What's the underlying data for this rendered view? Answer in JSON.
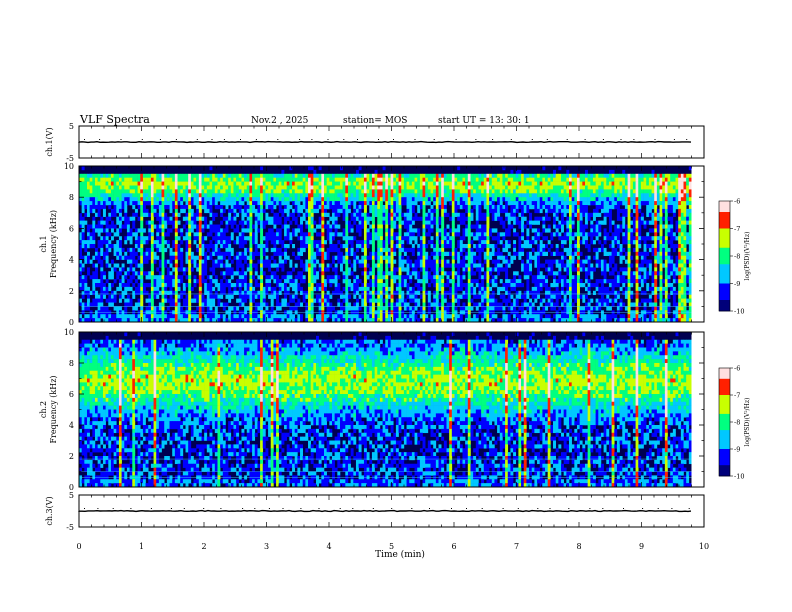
{
  "header": {
    "title": "VLF Spectra",
    "date": "Nov.2  , 2025",
    "station": "station= MOS",
    "start": "start  UT =   13: 30: 1"
  },
  "chart_data": {
    "type": "heatmap",
    "xlabel": "Time  (min)",
    "xlim": [
      0,
      10
    ],
    "x_ticks": [
      "0",
      "1",
      "2",
      "3",
      "4",
      "5",
      "6",
      "7",
      "8",
      "9",
      "10"
    ],
    "panels": [
      {
        "name": "ch.1 waveform",
        "ylabel": "ch.1(V)",
        "ylim": [
          -5,
          5
        ],
        "y_ticks": [
          "5",
          "-5"
        ],
        "trace_level": 0
      },
      {
        "name": "ch.1 spectrogram",
        "ylabel": "ch.1\nFrequency  (kHz)",
        "ylim": [
          0,
          10
        ],
        "y_ticks": [
          "10",
          "8",
          "6",
          "4",
          "2",
          "0"
        ],
        "colorbar": {
          "label": "log(PSD)(V²/Hz)",
          "range": [
            -10,
            -6
          ],
          "ticks": [
            "-6",
            "-7",
            "-8",
            "-9",
            "-10"
          ]
        },
        "band_center_khz": 8.8,
        "data_end_min": 9.8
      },
      {
        "name": "ch.2 spectrogram",
        "ylabel": "ch.2\nFrequency  (kHz)",
        "ylim": [
          0,
          10
        ],
        "y_ticks": [
          "10",
          "8",
          "6",
          "4",
          "2",
          "0"
        ],
        "colorbar": {
          "label": "log(PSD)(V²/Hz)",
          "range": [
            -10,
            -6
          ],
          "ticks": [
            "-6",
            "-7",
            "-8",
            "-9",
            "-10"
          ]
        },
        "band_center_khz": 6.8,
        "data_end_min": 9.8
      },
      {
        "name": "ch.3 waveform",
        "ylabel": "ch.3(V)",
        "ylim": [
          -5,
          5
        ],
        "y_ticks": [
          "5",
          "-5"
        ],
        "trace_level": 0
      }
    ],
    "grid": false
  },
  "colors": {
    "scale": [
      "#00007a",
      "#0000ff",
      "#00c8ff",
      "#00ff80",
      "#c8ff00",
      "#ff2000",
      "#ffe0e0"
    ]
  }
}
